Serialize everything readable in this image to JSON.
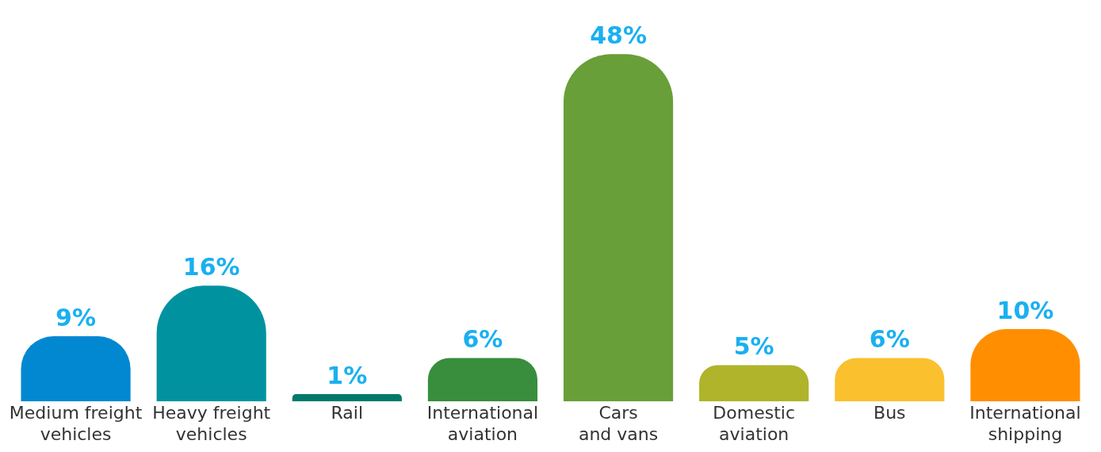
{
  "chart_data": {
    "type": "bar",
    "categories": [
      "Medium freight vehicles",
      "Heavy freight vehicles",
      "Rail",
      "International aviation",
      "Cars and vans",
      "Domestic aviation",
      "Bus",
      "International shipping"
    ],
    "values": [
      9,
      16,
      1,
      6,
      48,
      5,
      6,
      10
    ],
    "colors": [
      "#0288d1",
      "#00939f",
      "#00796b",
      "#388e3c",
      "#689f38",
      "#afb42b",
      "#fbc02d",
      "#ff8f00"
    ],
    "value_labels": [
      "9%",
      "16%",
      "1%",
      "6%",
      "48%",
      "5%",
      "6%",
      "10%"
    ],
    "grid": false,
    "legend": false
  }
}
